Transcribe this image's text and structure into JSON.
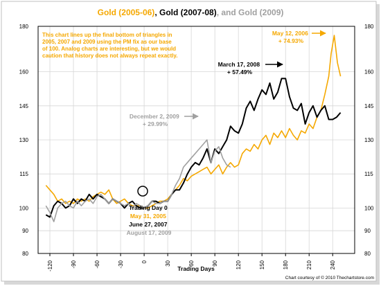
{
  "chart_data": {
    "type": "line",
    "title_parts": [
      {
        "text": "Gold (2005-06)",
        "color": "#f5a800"
      },
      {
        "text": ", ",
        "color": "#000000"
      },
      {
        "text": "Gold (2007-08)",
        "color": "#000000"
      },
      {
        "text": ", and Gold (2009)",
        "color": "#a0a0a0"
      }
    ],
    "xlabel": "Trading Days",
    "xlim": [
      -135,
      268
    ],
    "ylim": [
      80,
      180
    ],
    "x_ticks": [
      -120,
      -90,
      -60,
      -30,
      0,
      30,
      60,
      90,
      120,
      150,
      180,
      210,
      240
    ],
    "y_ticks": [
      80,
      90,
      100,
      115,
      130,
      145,
      160,
      180
    ],
    "grid": true,
    "note_lines": [
      "This chart lines up the final bottom of triangles in",
      "2005, 2007 and 2009 using the PM fix as our base",
      "of 100.  Analog charts are interesting, but we would",
      "caution that history does not always repeat exactly."
    ],
    "annotations": {
      "gold2005_peak": {
        "lines": [
          "May 12, 2006",
          "+ 74.93%"
        ],
        "color": "#f5a800"
      },
      "gold2007_peak": {
        "lines": [
          "March 17, 2008",
          "+ 57.49%"
        ],
        "color": "#000000"
      },
      "gold2009_peak": {
        "lines": [
          "December 2, 2009",
          "+ 29.99%"
        ],
        "color": "#a0a0a0"
      },
      "trading_day_0": {
        "lines": [
          {
            "text": "Trading Day 0",
            "color": "#000000"
          },
          {
            "text": "May 31, 2005",
            "color": "#f5a800"
          },
          {
            "text": "June 27, 2007",
            "color": "#000000"
          },
          {
            "text": "August 17, 2009",
            "color": "#a0a0a0"
          }
        ]
      }
    },
    "footer": "Chart courtesy of © 2010 Thechartstore.com",
    "series": [
      {
        "name": "Gold (2005-06)",
        "color": "#f5a800",
        "x": [
          -125,
          -120,
          -115,
          -110,
          -105,
          -100,
          -95,
          -90,
          -85,
          -80,
          -75,
          -70,
          -65,
          -60,
          -55,
          -50,
          -45,
          -40,
          -35,
          -30,
          -25,
          -20,
          -15,
          -10,
          -5,
          0,
          5,
          10,
          15,
          20,
          25,
          30,
          35,
          40,
          45,
          50,
          55,
          60,
          65,
          70,
          75,
          80,
          85,
          90,
          95,
          100,
          105,
          110,
          115,
          120,
          125,
          130,
          135,
          140,
          145,
          150,
          155,
          160,
          165,
          170,
          175,
          180,
          185,
          190,
          195,
          200,
          205,
          210,
          215,
          220,
          225,
          230,
          235,
          238,
          242,
          246,
          250
        ],
        "values": [
          110,
          108,
          106,
          103,
          104,
          102,
          103,
          102,
          104,
          103,
          104,
          103,
          105,
          106,
          107,
          106,
          108,
          104,
          102,
          103,
          104,
          102,
          101,
          101,
          101,
          100,
          100,
          101,
          102,
          103,
          103,
          104,
          106,
          108,
          110,
          113,
          112,
          114,
          115,
          116,
          117,
          118,
          115,
          117,
          119,
          115,
          118,
          120,
          118,
          119,
          124,
          126,
          125,
          128,
          126,
          130,
          132,
          128,
          133,
          131,
          134,
          131,
          135,
          132,
          130,
          134,
          133,
          137,
          135,
          140,
          143,
          150,
          158,
          168,
          176,
          164,
          158
        ]
      },
      {
        "name": "Gold (2007-08)",
        "color": "#000000",
        "x": [
          -125,
          -120,
          -115,
          -110,
          -105,
          -100,
          -95,
          -90,
          -85,
          -80,
          -75,
          -70,
          -65,
          -60,
          -55,
          -50,
          -45,
          -40,
          -35,
          -30,
          -25,
          -20,
          -15,
          -10,
          -5,
          0,
          5,
          10,
          15,
          20,
          25,
          30,
          35,
          40,
          45,
          50,
          55,
          60,
          65,
          70,
          75,
          80,
          85,
          90,
          95,
          100,
          105,
          110,
          115,
          120,
          125,
          130,
          135,
          140,
          145,
          150,
          155,
          160,
          165,
          170,
          175,
          180,
          185,
          190,
          195,
          200,
          205,
          210,
          215,
          220,
          225,
          230,
          235,
          240,
          245,
          250
        ],
        "values": [
          97,
          96,
          101,
          103,
          102,
          100,
          101,
          104,
          102,
          104,
          103,
          106,
          104,
          106,
          105,
          104,
          102,
          104,
          103,
          102,
          100,
          102,
          103,
          101,
          100,
          100,
          101,
          103,
          103,
          102,
          103,
          103,
          106,
          108,
          108,
          111,
          115,
          118,
          120,
          119,
          122,
          126,
          120,
          126,
          124,
          127,
          130,
          136,
          134,
          133,
          137,
          144,
          147,
          143,
          148,
          152,
          150,
          155,
          148,
          151,
          157,
          157,
          149,
          144,
          143,
          146,
          137,
          142,
          145,
          140,
          143,
          145,
          139,
          139,
          140,
          142
        ]
      },
      {
        "name": "Gold (2009)",
        "color": "#a0a0a0",
        "x": [
          -125,
          -120,
          -115,
          -110,
          -105,
          -100,
          -95,
          -90,
          -85,
          -80,
          -75,
          -70,
          -65,
          -60,
          -55,
          -50,
          -45,
          -40,
          -35,
          -30,
          -25,
          -20,
          -15,
          -10,
          -5,
          0,
          5,
          10,
          15,
          20,
          25,
          30,
          35,
          40,
          45,
          50,
          55,
          60,
          65,
          70,
          75,
          80,
          85,
          90,
          95,
          100,
          105,
          110
        ],
        "values": [
          101,
          98,
          94,
          100,
          102,
          103,
          101,
          100,
          103,
          101,
          103,
          104,
          102,
          105,
          106,
          104,
          102,
          104,
          103,
          102,
          101,
          102,
          100,
          102,
          101,
          100,
          101,
          103,
          102,
          102,
          103,
          103,
          106,
          110,
          113,
          118,
          120,
          122,
          124,
          126,
          128,
          130,
          120,
          125,
          127,
          122,
          119,
          118
        ]
      }
    ]
  }
}
